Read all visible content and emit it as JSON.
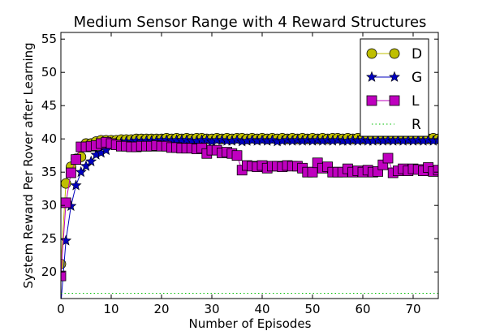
{
  "chart_data": {
    "type": "line",
    "title": "Medium Sensor Range with 4 Reward Structures",
    "xlabel": "Number of Episodes",
    "ylabel": "System Reward Per Rover after Learning",
    "xlim": [
      0,
      75
    ],
    "ylim": [
      16,
      56
    ],
    "xticks": [
      0,
      10,
      20,
      30,
      40,
      50,
      60,
      70
    ],
    "yticks": [
      20,
      25,
      30,
      35,
      40,
      45,
      50,
      55
    ],
    "grid": false,
    "legend_position": "top-right",
    "series": [
      {
        "name": "D",
        "color": "#bfbf00",
        "marker": "circle",
        "x": [
          0,
          1,
          2,
          3,
          4,
          5,
          6,
          7,
          8,
          9,
          10,
          11,
          12,
          13,
          14,
          15,
          16,
          17,
          18,
          19,
          20,
          21,
          22,
          23,
          24,
          25,
          26,
          27,
          28,
          29,
          30,
          31,
          32,
          33,
          34,
          35,
          36,
          37,
          38,
          39,
          40,
          41,
          42,
          43,
          44,
          45,
          46,
          47,
          48,
          49,
          50,
          51,
          52,
          53,
          54,
          55,
          56,
          57,
          58,
          59,
          60,
          61,
          62,
          63,
          64,
          65,
          66,
          67,
          68,
          69,
          70,
          71,
          72,
          73,
          74,
          75
        ],
        "y": [
          21.2,
          33.3,
          35.8,
          37.0,
          37.3,
          39.3,
          39.3,
          39.6,
          39.8,
          39.8,
          39.8,
          39.8,
          39.9,
          39.9,
          39.9,
          40.0,
          40.0,
          40.0,
          40.0,
          40.0,
          40.0,
          40.1,
          40.0,
          40.1,
          40.0,
          40.1,
          40.0,
          40.1,
          40.1,
          40.0,
          40.0,
          40.1,
          40.0,
          40.1,
          40.0,
          40.1,
          40.1,
          40.0,
          40.1,
          40.0,
          40.1,
          40.0,
          40.1,
          40.0,
          40.1,
          40.0,
          40.1,
          40.0,
          40.1,
          40.0,
          40.1,
          40.0,
          40.1,
          40.0,
          40.1,
          40.1,
          40.0,
          40.1,
          40.0,
          40.1,
          40.0,
          40.1,
          40.1,
          40.0,
          40.1,
          40.0,
          40.1,
          40.0,
          40.1,
          40.0,
          40.1,
          40.0,
          40.1,
          40.0,
          40.1,
          40.0
        ]
      },
      {
        "name": "G",
        "color": "#0000bf",
        "marker": "star",
        "x": [
          0,
          1,
          2,
          3,
          4,
          5,
          6,
          7,
          8,
          9,
          10,
          11,
          12,
          13,
          14,
          15,
          16,
          17,
          18,
          19,
          20,
          21,
          22,
          23,
          24,
          25,
          26,
          27,
          28,
          29,
          30,
          31,
          32,
          33,
          34,
          35,
          36,
          37,
          38,
          39,
          40,
          41,
          42,
          43,
          44,
          45,
          46,
          47,
          48,
          49,
          50,
          51,
          52,
          53,
          54,
          55,
          56,
          57,
          58,
          59,
          60,
          61,
          62,
          63,
          64,
          65,
          66,
          67,
          68,
          69,
          70,
          71,
          72,
          73,
          74,
          75
        ],
        "y": [
          15.2,
          24.7,
          29.9,
          33.0,
          35.0,
          35.9,
          36.6,
          37.6,
          37.9,
          38.3,
          39.2,
          39.4,
          39.5,
          39.6,
          39.6,
          39.7,
          39.6,
          39.7,
          39.7,
          39.7,
          39.8,
          39.8,
          39.7,
          39.8,
          39.8,
          39.8,
          39.7,
          39.7,
          39.8,
          39.8,
          39.6,
          39.8,
          39.8,
          39.7,
          39.7,
          39.8,
          39.6,
          39.7,
          39.8,
          39.7,
          39.8,
          39.7,
          39.8,
          39.6,
          39.7,
          39.8,
          39.7,
          39.8,
          39.7,
          39.8,
          39.7,
          39.8,
          39.7,
          39.8,
          39.7,
          39.8,
          39.7,
          39.7,
          39.8,
          39.7,
          39.8,
          39.7,
          39.7,
          39.8,
          39.7,
          39.8,
          39.7,
          39.8,
          39.7,
          39.8,
          39.7,
          39.8,
          39.7,
          39.8,
          39.7,
          39.8
        ]
      },
      {
        "name": "L",
        "color": "#bf00bf",
        "marker": "square",
        "x": [
          0,
          1,
          2,
          3,
          4,
          5,
          6,
          7,
          8,
          9,
          10,
          11,
          12,
          13,
          14,
          15,
          16,
          17,
          18,
          19,
          20,
          21,
          22,
          23,
          24,
          25,
          26,
          27,
          28,
          29,
          30,
          31,
          32,
          33,
          34,
          35,
          36,
          37,
          38,
          39,
          40,
          41,
          42,
          43,
          44,
          45,
          46,
          47,
          48,
          49,
          50,
          51,
          52,
          53,
          54,
          55,
          56,
          57,
          58,
          59,
          60,
          61,
          62,
          63,
          64,
          65,
          66,
          67,
          68,
          69,
          70,
          71,
          72,
          73,
          74,
          75
        ],
        "y": [
          19.4,
          30.4,
          34.9,
          36.9,
          38.8,
          38.8,
          38.9,
          39.0,
          39.3,
          39.5,
          39.3,
          39.1,
          38.9,
          38.9,
          38.8,
          38.8,
          38.9,
          38.9,
          38.9,
          39.0,
          38.9,
          38.9,
          38.7,
          38.7,
          38.6,
          38.6,
          38.6,
          38.5,
          38.6,
          37.8,
          38.3,
          38.3,
          37.9,
          38.0,
          37.8,
          37.5,
          35.3,
          36.0,
          35.9,
          35.8,
          36.0,
          35.6,
          35.9,
          35.9,
          35.8,
          36.0,
          35.9,
          35.9,
          35.6,
          35.0,
          35.0,
          36.4,
          35.6,
          35.8,
          35.0,
          35.0,
          35.0,
          35.5,
          35.0,
          35.2,
          35.0,
          35.3,
          35.0,
          35.1,
          36.1,
          37.1,
          34.9,
          35.2,
          35.5,
          35.2,
          35.5,
          35.4,
          35.2,
          35.7,
          35.1,
          35.3
        ]
      },
      {
        "name": "R",
        "color": "#00bf00",
        "marker": "none",
        "line_style": "dotted",
        "x": [
          0,
          75
        ],
        "y": [
          16.8,
          16.8
        ]
      }
    ]
  }
}
